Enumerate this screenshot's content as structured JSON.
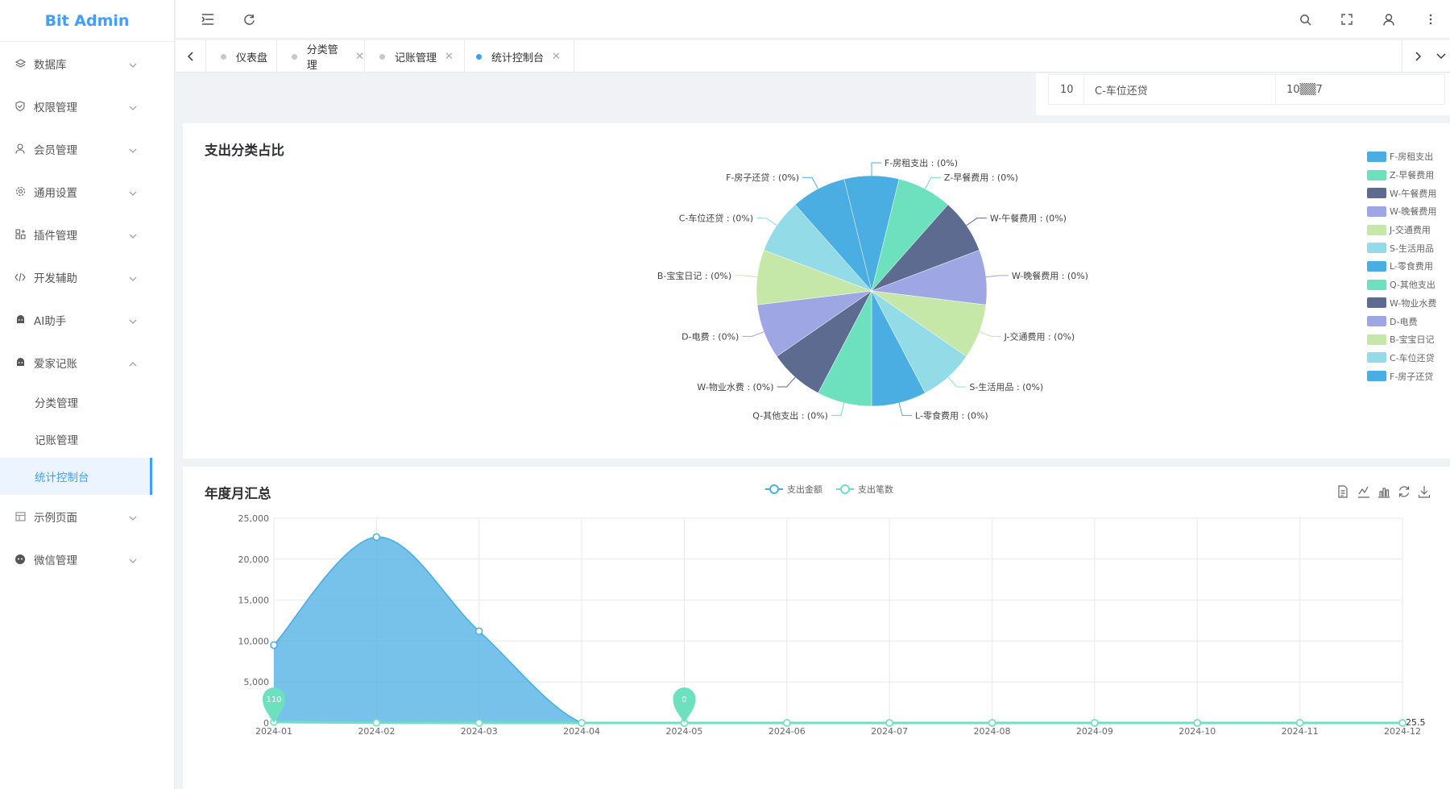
{
  "app": {
    "title": "Bit Admin",
    "brand_color": "#409eff"
  },
  "sidebar": {
    "items": [
      {
        "label": "数据库",
        "icon": "database-icon"
      },
      {
        "label": "权限管理",
        "icon": "shield-icon"
      },
      {
        "label": "会员管理",
        "icon": "user-icon"
      },
      {
        "label": "通用设置",
        "icon": "gear-icon"
      },
      {
        "label": "插件管理",
        "icon": "plugin-icon"
      },
      {
        "label": "开发辅助",
        "icon": "code-icon"
      },
      {
        "label": "AI助手",
        "icon": "robot-icon"
      },
      {
        "label": "爱家记账",
        "icon": "android-icon"
      }
    ],
    "subitems": [
      {
        "label": "分类管理"
      },
      {
        "label": "记账管理"
      },
      {
        "label": "统计控制台"
      }
    ],
    "items_after": [
      {
        "label": "示例页面",
        "icon": "layout-icon"
      },
      {
        "label": "微信管理",
        "icon": "wechat-icon"
      }
    ]
  },
  "tabs": [
    {
      "label": "仪表盘"
    },
    {
      "label": "分类管理"
    },
    {
      "label": "记账管理"
    },
    {
      "label": "统计控制台"
    }
  ],
  "table_row": {
    "index": "10",
    "name": "C-车位还贷",
    "value": "10▒▒7"
  },
  "pie_card": {
    "title": "支出分类占比",
    "chart_data": {
      "type": "pie",
      "title": "支出分类占比",
      "slices": [
        {
          "name": "F-房租支出",
          "label": "F-房租支出 : (0%)",
          "color": "#4aaee3"
        },
        {
          "name": "Z-早餐费用",
          "label": "Z-早餐费用 : (0%)",
          "color": "#6de0bd"
        },
        {
          "name": "W-午餐费用",
          "label": "W-午餐费用 : (0%)",
          "color": "#5c6b8f"
        },
        {
          "name": "W-晚餐费用",
          "label": "W-晚餐费用 : (0%)",
          "color": "#9ea7e3"
        },
        {
          "name": "J-交通费用",
          "label": "J-交通费用 : (0%)",
          "color": "#c5e8a8"
        },
        {
          "name": "S-生活用品",
          "label": "S-生活用品 : (0%)",
          "color": "#93dbe7"
        },
        {
          "name": "L-零食费用",
          "label": "L-零食费用 : (0%)",
          "color": "#4aaee3"
        },
        {
          "name": "Q-其他支出",
          "label": "Q-其他支出 : (0%)",
          "color": "#6de0bd"
        },
        {
          "name": "W-物业水费",
          "label": "W-物业水费 : (0%)",
          "color": "#5c6b8f"
        },
        {
          "name": "D-电费",
          "label": "D-电费 : (0%)",
          "color": "#9ea7e3"
        },
        {
          "name": "B-宝宝日记",
          "label": "B-宝宝日记 : (0%)",
          "color": "#c5e8a8"
        },
        {
          "name": "C-车位还贷",
          "label": "C-车位还贷 : (0%)",
          "color": "#93dbe7"
        },
        {
          "name": "F-房子还贷",
          "label": "F-房子还贷 : (0%)",
          "color": "#4aaee3"
        }
      ],
      "legend_placement": "right"
    }
  },
  "line_card": {
    "title": "年度月汇总",
    "chart_data": {
      "type": "area",
      "title": "年度月汇总",
      "categories": [
        "2024-01",
        "2024-02",
        "2024-03",
        "2024-04",
        "2024-05",
        "2024-06",
        "2024-07",
        "2024-08",
        "2024-09",
        "2024-10",
        "2024-11",
        "2024-12"
      ],
      "series": [
        {
          "name": "支出金额",
          "color": "#4aaee3",
          "values": [
            9500,
            22700,
            11200,
            0,
            0,
            0,
            0,
            0,
            0,
            0,
            0,
            0
          ]
        },
        {
          "name": "支出笔数",
          "color": "#6de0bd",
          "values": [
            110,
            20,
            0,
            0,
            0,
            0,
            0,
            0,
            0,
            0,
            0,
            0
          ]
        }
      ],
      "ylim": [
        0,
        25000
      ],
      "yticks": [
        "0",
        "5,000",
        "10,000",
        "15,000",
        "20,000",
        "25,000"
      ],
      "markers": [
        {
          "label": "110"
        },
        {
          "label": "0"
        }
      ],
      "end_label": "25.5",
      "grid": true,
      "legend_placement": "top-center"
    }
  }
}
